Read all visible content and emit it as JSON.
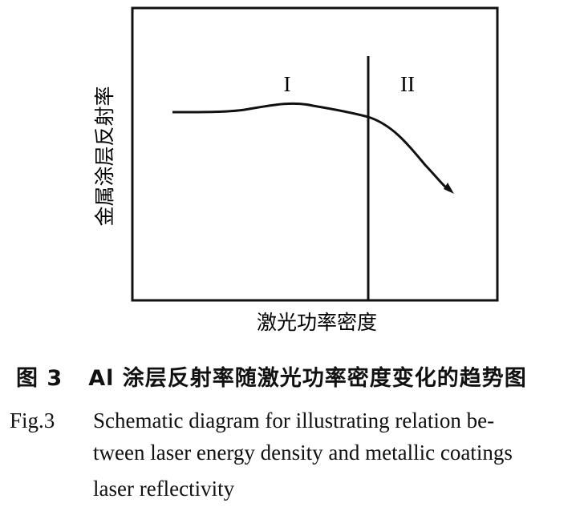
{
  "diagram": {
    "y_label": "金属涂层反射率",
    "x_label": "激光功率密度",
    "region_1": "I",
    "region_2": "II"
  },
  "caption_cn": {
    "label": "图 3",
    "text": "Al 涂层反射率随激光功率密度变化的趋势图"
  },
  "caption_en": {
    "label": "Fig.3",
    "line1": "Schematic diagram for illustrating relation be-",
    "line2": "tween laser energy density and metallic coatings",
    "line3": "laser reflectivity"
  }
}
